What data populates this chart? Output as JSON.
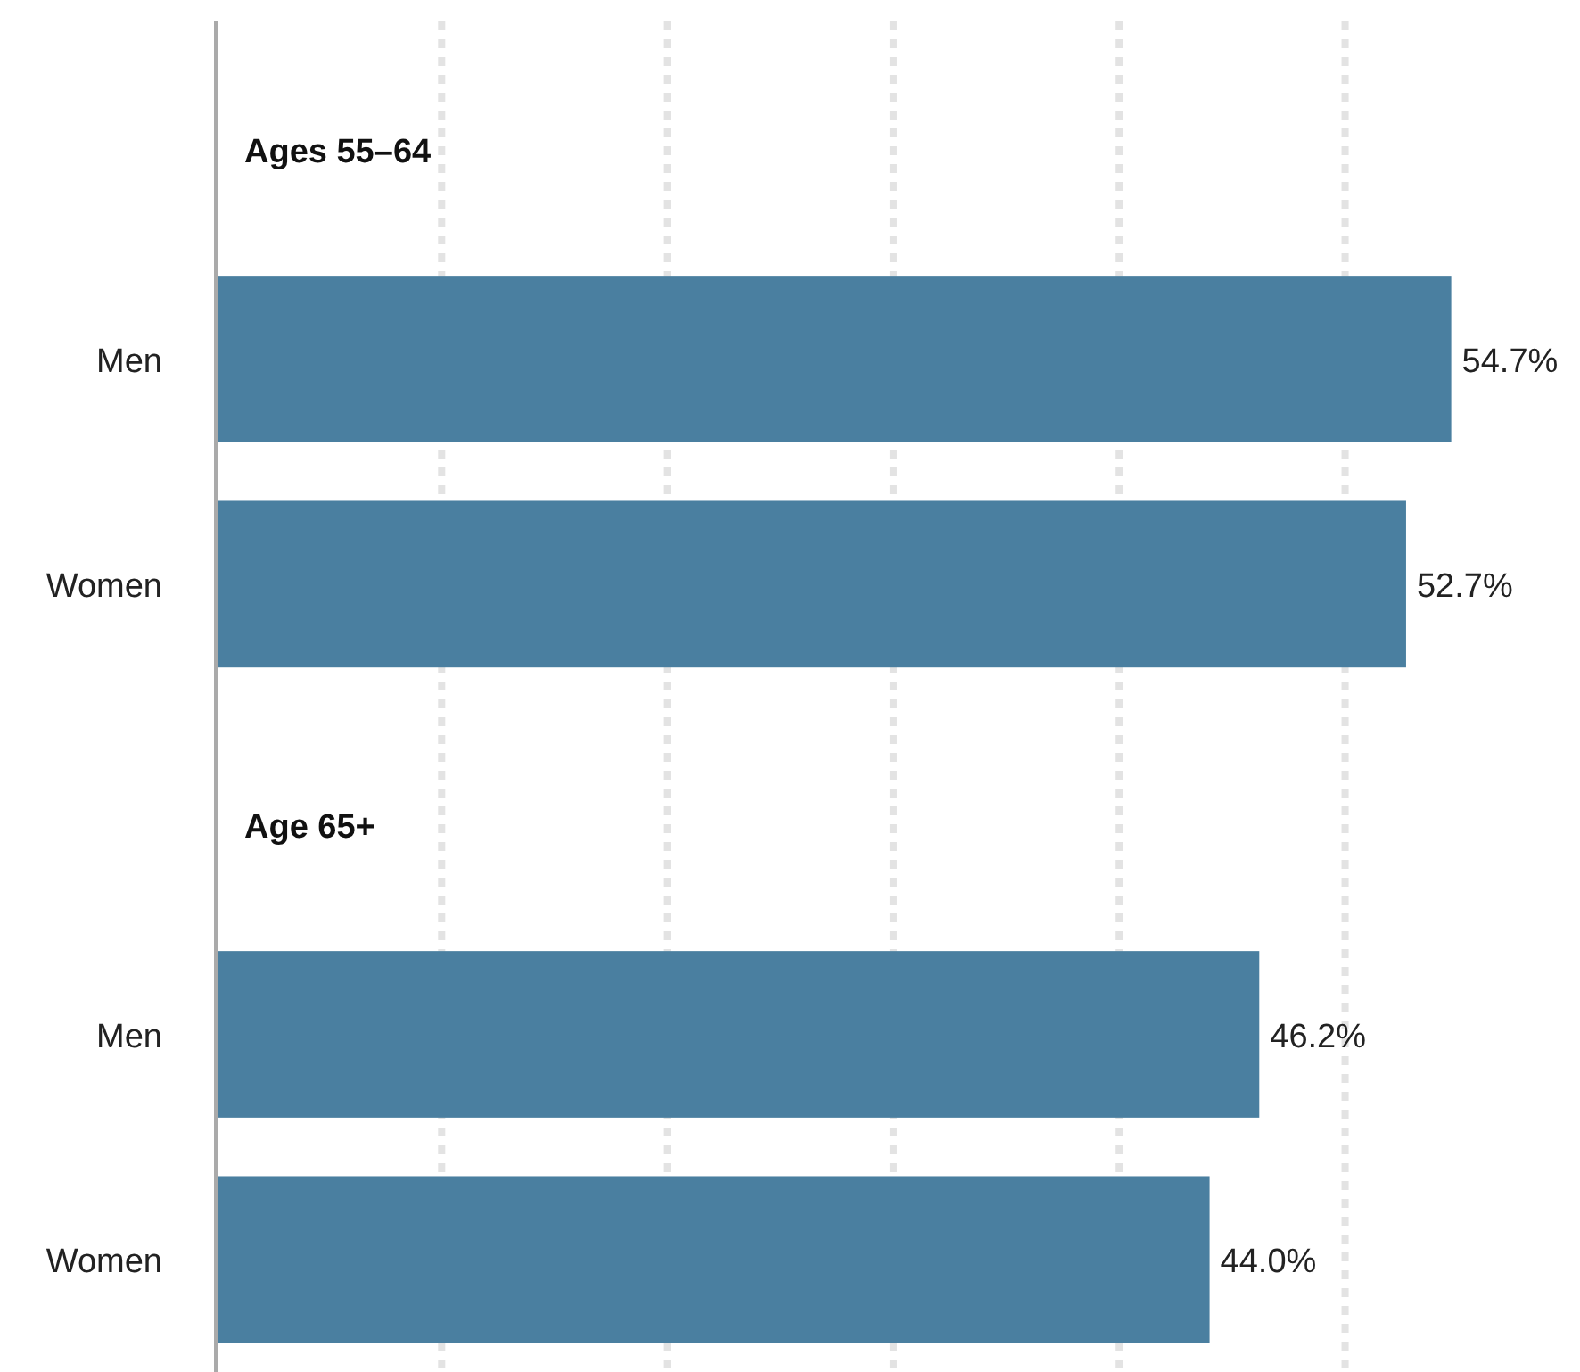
{
  "chart_data": {
    "type": "bar",
    "orientation": "horizontal",
    "categories": [
      null,
      "Men",
      "Women",
      null,
      "Men",
      "Women"
    ],
    "values": [
      null,
      54.7,
      52.7,
      null,
      46.2,
      44.0
    ],
    "value_labels": [
      null,
      "54.7%",
      "52.7%",
      null,
      "46.2%",
      "44.0%"
    ],
    "color": "#4a7fa0",
    "annotations": [
      "Ages 55–64",
      "Age 65+"
    ],
    "xlim": [
      0,
      60.4
    ],
    "xticks": [
      {
        "value": 10,
        "label": null
      },
      {
        "value": 20,
        "label": null
      },
      {
        "value": 30,
        "label": null
      },
      {
        "value": 40,
        "label": null
      },
      {
        "value": 50,
        "label": null
      }
    ],
    "grid": "x",
    "tick_labels": "y"
  }
}
